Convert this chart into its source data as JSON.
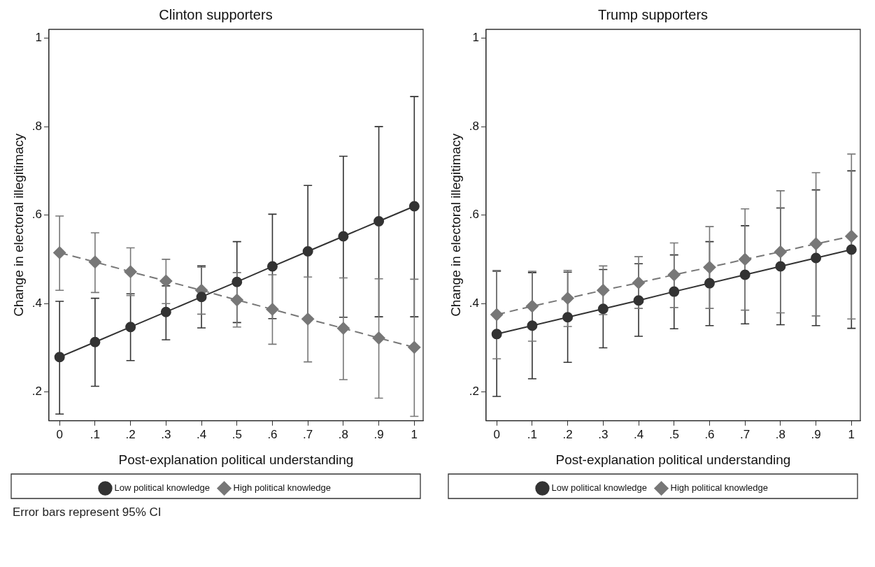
{
  "chart_data": [
    {
      "type": "line",
      "title": "Clinton supporters",
      "xlabel": "Post-explanation political understanding",
      "ylabel": "Change in electoral illegitimacy",
      "x": [
        0,
        0.1,
        0.2,
        0.3,
        0.4,
        0.5,
        0.6,
        0.7,
        0.8,
        0.9,
        1
      ],
      "xlim": [
        -0.03,
        1.025
      ],
      "xticks": [
        {
          "value": 0,
          "label": "0"
        },
        {
          "value": 0.1,
          "label": ".1"
        },
        {
          "value": 0.2,
          "label": ".2"
        },
        {
          "value": 0.3,
          "label": ".3"
        },
        {
          "value": 0.4,
          "label": ".4"
        },
        {
          "value": 0.5,
          "label": ".5"
        },
        {
          "value": 0.6,
          "label": ".6"
        },
        {
          "value": 0.7,
          "label": ".7"
        },
        {
          "value": 0.8,
          "label": ".8"
        },
        {
          "value": 0.9,
          "label": ".9"
        },
        {
          "value": 1,
          "label": "1"
        }
      ],
      "ylim": [
        0.135,
        1.02
      ],
      "yticks": [
        {
          "value": 0.2,
          "label": ".2"
        },
        {
          "value": 0.4,
          "label": ".4"
        },
        {
          "value": 0.6,
          "label": ".6"
        },
        {
          "value": 0.8,
          "label": ".8"
        },
        1
      ],
      "grid": false,
      "legend": "bottom",
      "series": [
        {
          "name": "Low political knowledge",
          "color": "#333333",
          "marker": "circle",
          "line_style": "solid",
          "values": [
            0.279,
            0.313,
            0.347,
            0.381,
            0.415,
            0.449,
            0.484,
            0.518,
            0.552,
            0.586,
            0.62
          ],
          "errors": [
            [
              0.15,
              0.405
            ],
            [
              0.213,
              0.412
            ],
            [
              0.271,
              0.422
            ],
            [
              0.318,
              0.44
            ],
            [
              0.345,
              0.485
            ],
            [
              0.357,
              0.54
            ],
            [
              0.366,
              0.602
            ],
            [
              0.369,
              0.667
            ],
            [
              0.369,
              0.733
            ],
            [
              0.37,
              0.8
            ],
            [
              0.37,
              0.868
            ]
          ]
        },
        {
          "name": "High political knowledge",
          "color": "#777777",
          "marker": "diamond",
          "line_style": "dashed",
          "values": [
            0.515,
            0.494,
            0.472,
            0.451,
            0.43,
            0.408,
            0.387,
            0.365,
            0.344,
            0.322,
            0.301
          ],
          "errors": [
            [
              0.43,
              0.598
            ],
            [
              0.425,
              0.56
            ],
            [
              0.418,
              0.526
            ],
            [
              0.4,
              0.5
            ],
            [
              0.376,
              0.482
            ],
            [
              0.347,
              0.47
            ],
            [
              0.308,
              0.465
            ],
            [
              0.268,
              0.46
            ],
            [
              0.228,
              0.458
            ],
            [
              0.186,
              0.456
            ],
            [
              0.145,
              0.455
            ]
          ]
        }
      ],
      "annotations": [
        "Error bars represent 95% CI"
      ]
    },
    {
      "type": "line",
      "title": "Trump supporters",
      "xlabel": "Post-explanation political understanding",
      "ylabel": "Change in electoral illegitimacy",
      "x": [
        0,
        0.1,
        0.2,
        0.3,
        0.4,
        0.5,
        0.6,
        0.7,
        0.8,
        0.9,
        1
      ],
      "xlim": [
        -0.03,
        1.025
      ],
      "xticks": [
        {
          "value": 0,
          "label": "0"
        },
        {
          "value": 0.1,
          "label": ".1"
        },
        {
          "value": 0.2,
          "label": ".2"
        },
        {
          "value": 0.3,
          "label": ".3"
        },
        {
          "value": 0.4,
          "label": ".4"
        },
        {
          "value": 0.5,
          "label": ".5"
        },
        {
          "value": 0.6,
          "label": ".6"
        },
        {
          "value": 0.7,
          "label": ".7"
        },
        {
          "value": 0.8,
          "label": ".8"
        },
        {
          "value": 0.9,
          "label": ".9"
        },
        {
          "value": 1,
          "label": "1"
        }
      ],
      "ylim": [
        0.135,
        1.02
      ],
      "yticks": [
        {
          "value": 0.2,
          "label": ".2"
        },
        {
          "value": 0.4,
          "label": ".4"
        },
        {
          "value": 0.6,
          "label": ".6"
        },
        {
          "value": 0.8,
          "label": ".8"
        },
        1
      ],
      "grid": false,
      "legend": "bottom",
      "series": [
        {
          "name": "Low political knowledge",
          "color": "#333333",
          "marker": "circle",
          "line_style": "solid",
          "values": [
            0.331,
            0.35,
            0.369,
            0.388,
            0.407,
            0.427,
            0.446,
            0.465,
            0.484,
            0.503,
            0.522
          ],
          "errors": [
            [
              0.19,
              0.473
            ],
            [
              0.23,
              0.47
            ],
            [
              0.267,
              0.471
            ],
            [
              0.3,
              0.477
            ],
            [
              0.326,
              0.49
            ],
            [
              0.343,
              0.51
            ],
            [
              0.35,
              0.54
            ],
            [
              0.354,
              0.576
            ],
            [
              0.352,
              0.616
            ],
            [
              0.35,
              0.657
            ],
            [
              0.344,
              0.7
            ]
          ]
        },
        {
          "name": "High political knowledge",
          "color": "#777777",
          "marker": "diamond",
          "line_style": "dashed",
          "values": [
            0.375,
            0.394,
            0.412,
            0.43,
            0.447,
            0.465,
            0.482,
            0.5,
            0.517,
            0.535,
            0.552
          ],
          "errors": [
            [
              0.275,
              0.475
            ],
            [
              0.315,
              0.473
            ],
            [
              0.348,
              0.475
            ],
            [
              0.375,
              0.485
            ],
            [
              0.389,
              0.506
            ],
            [
              0.391,
              0.537
            ],
            [
              0.389,
              0.574
            ],
            [
              0.385,
              0.614
            ],
            [
              0.379,
              0.655
            ],
            [
              0.372,
              0.696
            ],
            [
              0.365,
              0.738
            ]
          ]
        }
      ]
    }
  ]
}
